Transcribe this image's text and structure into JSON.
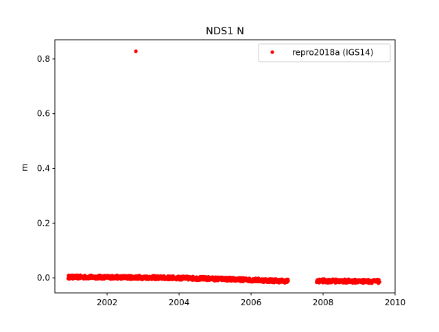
{
  "chart_data": {
    "type": "scatter",
    "title": "NDS1 N",
    "xlabel": "",
    "ylabel": "m",
    "xlim": [
      2000.55,
      2010.0
    ],
    "ylim": [
      -0.055,
      0.87
    ],
    "x_ticks": [
      2002,
      2004,
      2006,
      2008,
      2010
    ],
    "x_tick_labels": [
      "2002",
      "2004",
      "2006",
      "2008",
      "2010"
    ],
    "y_ticks": [
      0.0,
      0.2,
      0.4,
      0.6,
      0.8
    ],
    "y_tick_labels": [
      "0.0",
      "0.2",
      "0.4",
      "0.6",
      "0.8"
    ],
    "grid": false,
    "legend_position": "top-right",
    "series": [
      {
        "name": "repro2018a (IGS14)",
        "color": "#ff0000",
        "marker": "circle",
        "segments": [
          {
            "x_start": 2000.92,
            "x_end": 2007.03,
            "trend_start": 0.003,
            "trend_end": -0.012,
            "hump_amplitude": 0.004
          },
          {
            "x_start": 2007.82,
            "x_end": 2009.57,
            "trend_start": -0.011,
            "trend_end": -0.013,
            "hump_amplitude": 0.0
          }
        ],
        "scatter_amplitude": 0.007,
        "outliers": [
          {
            "x": 2002.8,
            "y": 0.828
          }
        ]
      }
    ]
  }
}
